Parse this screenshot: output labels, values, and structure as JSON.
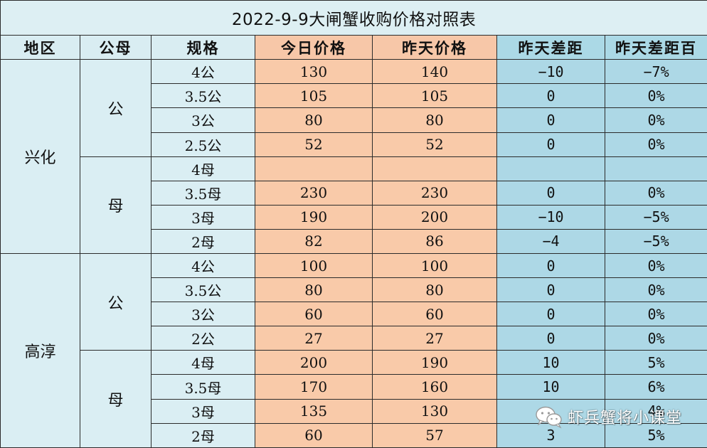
{
  "title": "2022-9-9大闸蟹收购价格对照表",
  "headers": [
    "地区",
    "公母",
    "规格",
    "今日价格",
    "昨天价格",
    "昨天差距",
    "昨天差距百"
  ],
  "regions": [
    "兴化",
    "高淳"
  ],
  "sexes": [
    "公",
    "母",
    "公",
    "母"
  ],
  "rows": [
    {
      "spec": "4公",
      "today": "130",
      "yesterday": "140",
      "diff": "−10",
      "pct": "−7%",
      "tone": "neg"
    },
    {
      "spec": "3.5公",
      "today": "105",
      "yesterday": "105",
      "diff": "0",
      "pct": "0%",
      "tone": "zero"
    },
    {
      "spec": "3公",
      "today": "80",
      "yesterday": "80",
      "diff": "0",
      "pct": "0%",
      "tone": "zero"
    },
    {
      "spec": "2.5公",
      "today": "52",
      "yesterday": "52",
      "diff": "0",
      "pct": "0%",
      "tone": "zero"
    },
    {
      "spec": "4母",
      "today": "",
      "yesterday": "",
      "diff": "",
      "pct": "",
      "tone": "zero"
    },
    {
      "spec": "3.5母",
      "today": "230",
      "yesterday": "230",
      "diff": "0",
      "pct": "0%",
      "tone": "zero"
    },
    {
      "spec": "3母",
      "today": "190",
      "yesterday": "200",
      "diff": "−10",
      "pct": "−5%",
      "tone": "neg"
    },
    {
      "spec": "2母",
      "today": "82",
      "yesterday": "86",
      "diff": "−4",
      "pct": "−5%",
      "tone": "neg"
    },
    {
      "spec": "4公",
      "today": "100",
      "yesterday": "100",
      "diff": "0",
      "pct": "0%",
      "tone": "zero"
    },
    {
      "spec": "3.5公",
      "today": "80",
      "yesterday": "80",
      "diff": "0",
      "pct": "0%",
      "tone": "zero"
    },
    {
      "spec": "3公",
      "today": "60",
      "yesterday": "60",
      "diff": "0",
      "pct": "0%",
      "tone": "zero"
    },
    {
      "spec": "2公",
      "today": "27",
      "yesterday": "27",
      "diff": "0",
      "pct": "0%",
      "tone": "zero"
    },
    {
      "spec": "4母",
      "today": "200",
      "yesterday": "190",
      "diff": "10",
      "pct": "5%",
      "tone": "pos"
    },
    {
      "spec": "3.5母",
      "today": "170",
      "yesterday": "160",
      "diff": "10",
      "pct": "6%",
      "tone": "pos"
    },
    {
      "spec": "3母",
      "today": "135",
      "yesterday": "130",
      "diff": "",
      "pct": "4%",
      "tone": "pos"
    },
    {
      "spec": "2母",
      "today": "60",
      "yesterday": "57",
      "diff": "3",
      "pct": "5%",
      "tone": "pos"
    }
  ],
  "watermark": {
    "text": "虾兵蟹将小课堂",
    "icon": "wechat-icon"
  },
  "colors": {
    "positive": "#d01111",
    "negative": "#13a24b",
    "today_fill": "#f9caa9",
    "diff_fill": "#add8e6",
    "label_fill": "#daeef3"
  }
}
